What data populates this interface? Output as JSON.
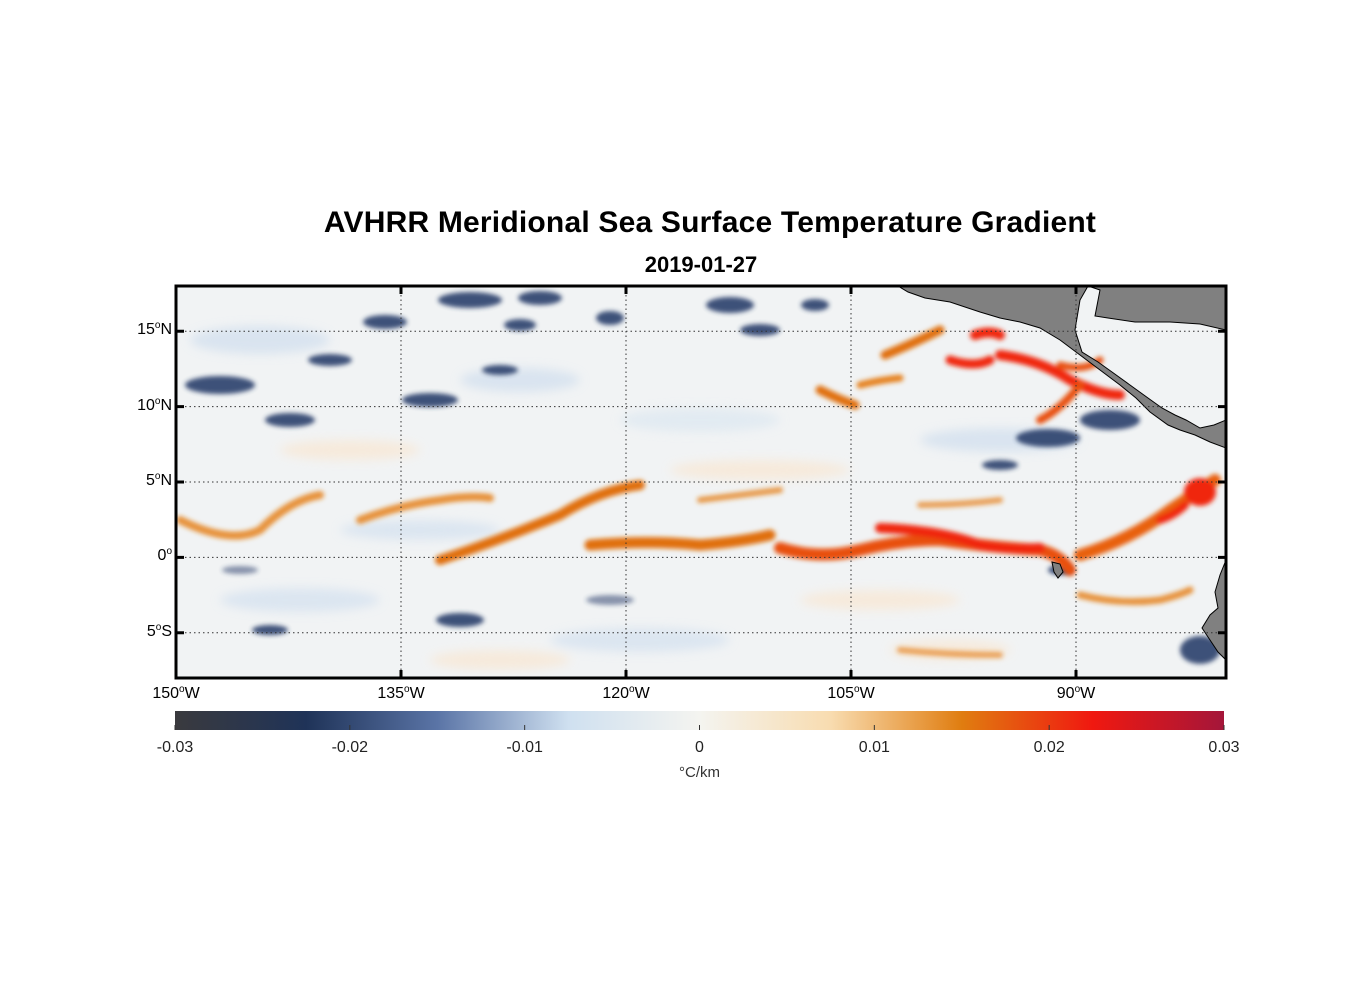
{
  "title": "AVHRR Meridional Sea Surface Temperature Gradient",
  "subtitle": "2019-01-27",
  "map": {
    "lon_range": [
      -150,
      -80
    ],
    "lat_range": [
      -8,
      18
    ],
    "land_color": "#808080",
    "grid": "dotted",
    "lon_ticks": [
      {
        "value": -150,
        "deg": "150",
        "hemi": "W"
      },
      {
        "value": -135,
        "deg": "135",
        "hemi": "W"
      },
      {
        "value": -120,
        "deg": "120",
        "hemi": "W"
      },
      {
        "value": -105,
        "deg": "105",
        "hemi": "W"
      },
      {
        "value": -90,
        "deg": "90",
        "hemi": "W"
      }
    ],
    "lat_ticks": [
      {
        "value": 15,
        "deg": "15",
        "hemi": "N"
      },
      {
        "value": 10,
        "deg": "10",
        "hemi": "N"
      },
      {
        "value": 5,
        "deg": "5",
        "hemi": "N"
      },
      {
        "value": 0,
        "deg": "0",
        "hemi": ""
      },
      {
        "value": -5,
        "deg": "5",
        "hemi": "S"
      }
    ]
  },
  "colorbar": {
    "range": [
      -0.03,
      0.03
    ],
    "ticks": [
      "-0.03",
      "-0.02",
      "-0.01",
      "0",
      "0.01",
      "0.02",
      "0.03"
    ],
    "unit": "°C/km",
    "colors": [
      "#3a3a3e",
      "#1f3358",
      "#5a74a6",
      "#cfe0f0",
      "#f4f4f0",
      "#f8dcb0",
      "#e07d10",
      "#f01810",
      "#a4163a"
    ]
  }
}
